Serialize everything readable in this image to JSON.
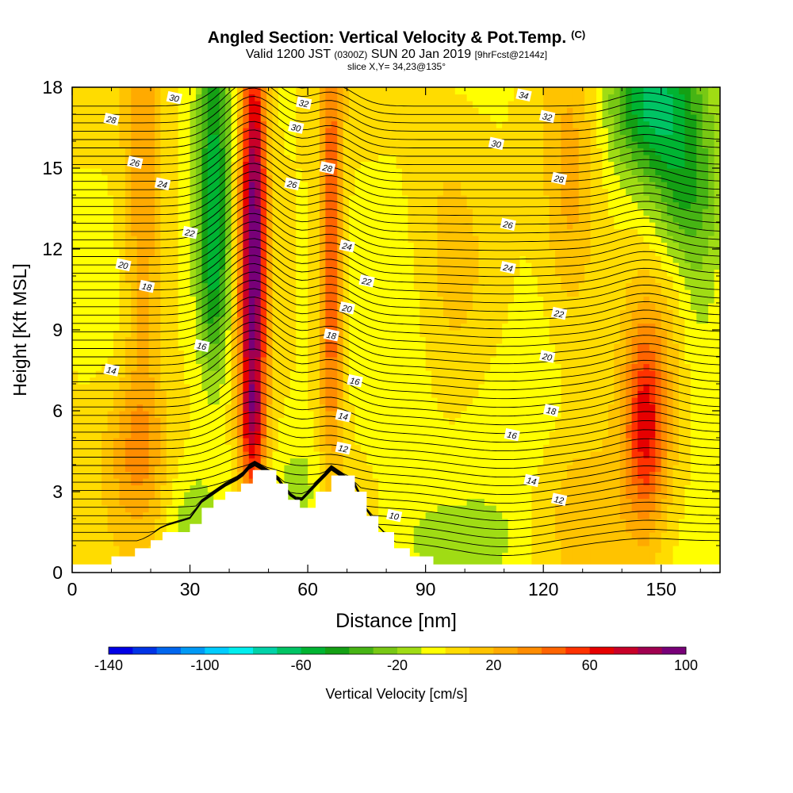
{
  "title": {
    "main": "Angled Section: Vertical Velocity & Pot.Temp.",
    "unit": "(C)",
    "valid_a": "Valid 1200 JST",
    "valid_b": "(0300Z)",
    "valid_c": "SUN 20 Jan 2019",
    "valid_d": "[9hrFcst@2144z]",
    "slice": "slice X,Y= 34,23@135°"
  },
  "chart_data": {
    "type": "heatmap",
    "xlabel": "Distance [nm]",
    "ylabel": "Height [Kft MSL]",
    "xlim": [
      0,
      165
    ],
    "ylim": [
      0,
      18
    ],
    "xticks": [
      "0",
      "30",
      "60",
      "90",
      "120",
      "150"
    ],
    "yticks": [
      "0",
      "3",
      "6",
      "9",
      "12",
      "15",
      "18"
    ],
    "grid": false,
    "colorbar": {
      "label": "Vertical Velocity [cm/s]",
      "min": -140,
      "max": 100,
      "step": 10,
      "tick_labels": [
        "-140",
        "-100",
        "-60",
        "-20",
        "20",
        "60",
        "100"
      ],
      "colors": [
        "#0000e6",
        "#0033e6",
        "#0066ee",
        "#0099f5",
        "#00ccff",
        "#00eeee",
        "#00d2a8",
        "#00c464",
        "#00b432",
        "#14a014",
        "#46b414",
        "#78c814",
        "#a0dc14",
        "#ffff00",
        "#ffdc00",
        "#ffc300",
        "#ffaa00",
        "#ff8c00",
        "#ff6400",
        "#ff3200",
        "#e60000",
        "#c80028",
        "#a00050",
        "#780078"
      ]
    },
    "velocity_field": {
      "background": 0,
      "features": [
        {
          "x": 46,
          "y": 11,
          "sx": 2.5,
          "sy": 7.0,
          "value": 90,
          "kind": "updraft"
        },
        {
          "x": 47,
          "y": 15,
          "sx": 1.5,
          "sy": 3.5,
          "value": 15
        },
        {
          "x": 46,
          "y": 5.8,
          "sx": 2.0,
          "sy": 1.0,
          "value": 20
        },
        {
          "x": 18,
          "y": 13,
          "sx": 3.5,
          "sy": 6.0,
          "value": 30
        },
        {
          "x": 16,
          "y": 4.5,
          "sx": 6.0,
          "sy": 2.0,
          "value": 25
        },
        {
          "x": 66,
          "y": 14,
          "sx": 2.0,
          "sy": 5.0,
          "value": 45
        },
        {
          "x": 66,
          "y": 8,
          "sx": 2.5,
          "sy": 3.5,
          "value": 25
        },
        {
          "x": 146,
          "y": 5.5,
          "sx": 3.5,
          "sy": 2.5,
          "value": 45
        },
        {
          "x": 146,
          "y": 5.5,
          "sx": 6.0,
          "sy": 4.0,
          "value": 22
        },
        {
          "x": 127,
          "y": 14,
          "sx": 5.0,
          "sy": 4.0,
          "value": 25
        },
        {
          "x": 130,
          "y": 2.5,
          "sx": 8.0,
          "sy": 2.0,
          "value": 12
        },
        {
          "x": 36,
          "y": 15,
          "sx": 3.0,
          "sy": 4.0,
          "value": -50,
          "kind": "downdraft"
        },
        {
          "x": 36,
          "y": 10.5,
          "sx": 3.0,
          "sy": 2.5,
          "value": -30
        },
        {
          "x": 148,
          "y": 17.5,
          "sx": 8.0,
          "sy": 2.0,
          "value": -60
        },
        {
          "x": 156,
          "y": 14,
          "sx": 6.0,
          "sy": 2.0,
          "value": -35
        },
        {
          "x": 160,
          "y": 10,
          "sx": 4.0,
          "sy": 3.0,
          "value": -15
        },
        {
          "x": 30,
          "y": 2.0,
          "sx": 5.0,
          "sy": 1.5,
          "value": -15
        },
        {
          "x": 58,
          "y": 3.0,
          "sx": 5.0,
          "sy": 1.5,
          "value": -15
        },
        {
          "x": 100,
          "y": 1.2,
          "sx": 12.0,
          "sy": 1.0,
          "value": -12
        },
        {
          "x": 85,
          "y": 8,
          "sx": 6.0,
          "sy": 4.0,
          "value": -8
        },
        {
          "x": 112,
          "y": 5.5,
          "sx": 9.0,
          "sy": 2.5,
          "value": -8
        },
        {
          "x": 96,
          "y": 13,
          "sx": 7.0,
          "sy": 4.0,
          "value": 10
        }
      ]
    },
    "terrain_profile": [
      {
        "x": 0,
        "h": 0.3
      },
      {
        "x": 10,
        "h": 0.6
      },
      {
        "x": 16,
        "h": 0.9
      },
      {
        "x": 20,
        "h": 1.2
      },
      {
        "x": 23,
        "h": 1.5
      },
      {
        "x": 30,
        "h": 1.8
      },
      {
        "x": 33,
        "h": 2.4
      },
      {
        "x": 36,
        "h": 2.7
      },
      {
        "x": 39,
        "h": 3.0
      },
      {
        "x": 43,
        "h": 3.3
      },
      {
        "x": 46,
        "h": 3.8
      },
      {
        "x": 52,
        "h": 3.3
      },
      {
        "x": 55,
        "h": 2.7
      },
      {
        "x": 58,
        "h": 2.4
      },
      {
        "x": 62,
        "h": 3.0
      },
      {
        "x": 66,
        "h": 3.6
      },
      {
        "x": 72,
        "h": 3.0
      },
      {
        "x": 75,
        "h": 2.1
      },
      {
        "x": 78,
        "h": 1.5
      },
      {
        "x": 82,
        "h": 0.9
      },
      {
        "x": 86,
        "h": 0.6
      },
      {
        "x": 92,
        "h": 0.3
      },
      {
        "x": 165,
        "h": 0.3
      }
    ],
    "theta_contours": {
      "levels": [
        10,
        12,
        14,
        16,
        18,
        20,
        22,
        24,
        26,
        28,
        30,
        32,
        34
      ],
      "plotted_levels": [
        9,
        9.5,
        10,
        10.5,
        11,
        11.5,
        12,
        12.5,
        13,
        13.5,
        14,
        14.5,
        15,
        15.5,
        16,
        16.5,
        17,
        17.5,
        18,
        18.5,
        19,
        19.5,
        20,
        20.5,
        21,
        21.5,
        22,
        22.5,
        23,
        23.5,
        24,
        24.5,
        25,
        25.5,
        26,
        26.5,
        27,
        27.5,
        28,
        28.5,
        29,
        29.5,
        30,
        30.5,
        31,
        31.5,
        32,
        32.5,
        33,
        33.5,
        34,
        34.5,
        35
      ],
      "labels": [
        {
          "text": "30",
          "x": 26,
          "y": 17.6
        },
        {
          "text": "28",
          "x": 10,
          "y": 16.8
        },
        {
          "text": "26",
          "x": 16,
          "y": 15.2
        },
        {
          "text": "24",
          "x": 23,
          "y": 14.4
        },
        {
          "text": "22",
          "x": 30,
          "y": 12.6
        },
        {
          "text": "20",
          "x": 13,
          "y": 11.4
        },
        {
          "text": "18",
          "x": 19,
          "y": 10.6
        },
        {
          "text": "16",
          "x": 33,
          "y": 8.4
        },
        {
          "text": "14",
          "x": 10,
          "y": 7.5
        },
        {
          "text": "32",
          "x": 59,
          "y": 17.4
        },
        {
          "text": "30",
          "x": 57,
          "y": 16.5
        },
        {
          "text": "28",
          "x": 65,
          "y": 15.0
        },
        {
          "text": "26",
          "x": 56,
          "y": 14.4
        },
        {
          "text": "24",
          "x": 70,
          "y": 12.1
        },
        {
          "text": "22",
          "x": 75,
          "y": 10.8
        },
        {
          "text": "20",
          "x": 70,
          "y": 9.8
        },
        {
          "text": "18",
          "x": 66,
          "y": 8.8
        },
        {
          "text": "16",
          "x": 72,
          "y": 7.1
        },
        {
          "text": "14",
          "x": 69,
          "y": 5.8
        },
        {
          "text": "12",
          "x": 69,
          "y": 4.6
        },
        {
          "text": "10",
          "x": 82,
          "y": 2.1
        },
        {
          "text": "34",
          "x": 115,
          "y": 17.7
        },
        {
          "text": "32",
          "x": 121,
          "y": 16.9
        },
        {
          "text": "30",
          "x": 108,
          "y": 15.9
        },
        {
          "text": "28",
          "x": 124,
          "y": 14.6
        },
        {
          "text": "26",
          "x": 111,
          "y": 12.9
        },
        {
          "text": "24",
          "x": 111,
          "y": 11.3
        },
        {
          "text": "22",
          "x": 124,
          "y": 9.6
        },
        {
          "text": "20",
          "x": 121,
          "y": 8.0
        },
        {
          "text": "18",
          "x": 122,
          "y": 6.0
        },
        {
          "text": "16",
          "x": 112,
          "y": 5.1
        },
        {
          "text": "14",
          "x": 117,
          "y": 3.4
        },
        {
          "text": "12",
          "x": 124,
          "y": 2.7
        }
      ]
    }
  }
}
